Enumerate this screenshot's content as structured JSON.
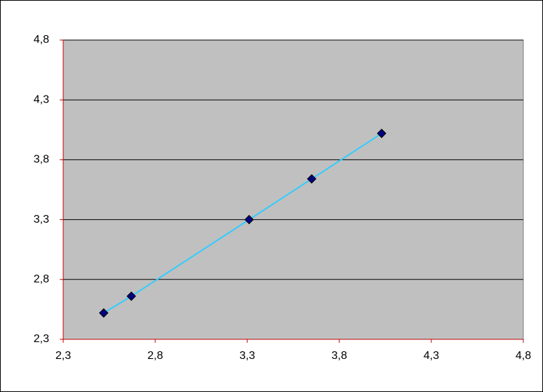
{
  "chart_data": {
    "type": "scatter",
    "x": [
      2.52,
      2.67,
      3.31,
      3.65,
      4.03
    ],
    "values": [
      2.52,
      2.66,
      3.3,
      3.64,
      4.02
    ],
    "color": "#000080",
    "line_color": "#33ccff",
    "xlim": [
      2.3,
      4.8
    ],
    "xticks": [
      {
        "value": 2.3,
        "label": "2,3"
      },
      {
        "value": 2.8,
        "label": "2,8"
      },
      {
        "value": 3.3,
        "label": "3,3"
      },
      {
        "value": 3.8,
        "label": "3,8"
      },
      {
        "value": 4.3,
        "label": "4,3"
      },
      {
        "value": 4.8,
        "label": "4,8"
      }
    ],
    "ylim": [
      2.3,
      4.8
    ],
    "yticks": [
      {
        "value": 2.3,
        "label": "2,3"
      },
      {
        "value": 2.8,
        "label": "2,8"
      },
      {
        "value": 3.3,
        "label": "3,3"
      },
      {
        "value": 3.8,
        "label": "3,8"
      },
      {
        "value": 4.3,
        "label": "4,3"
      },
      {
        "value": 4.8,
        "label": "4,8"
      }
    ],
    "grid": true
  }
}
